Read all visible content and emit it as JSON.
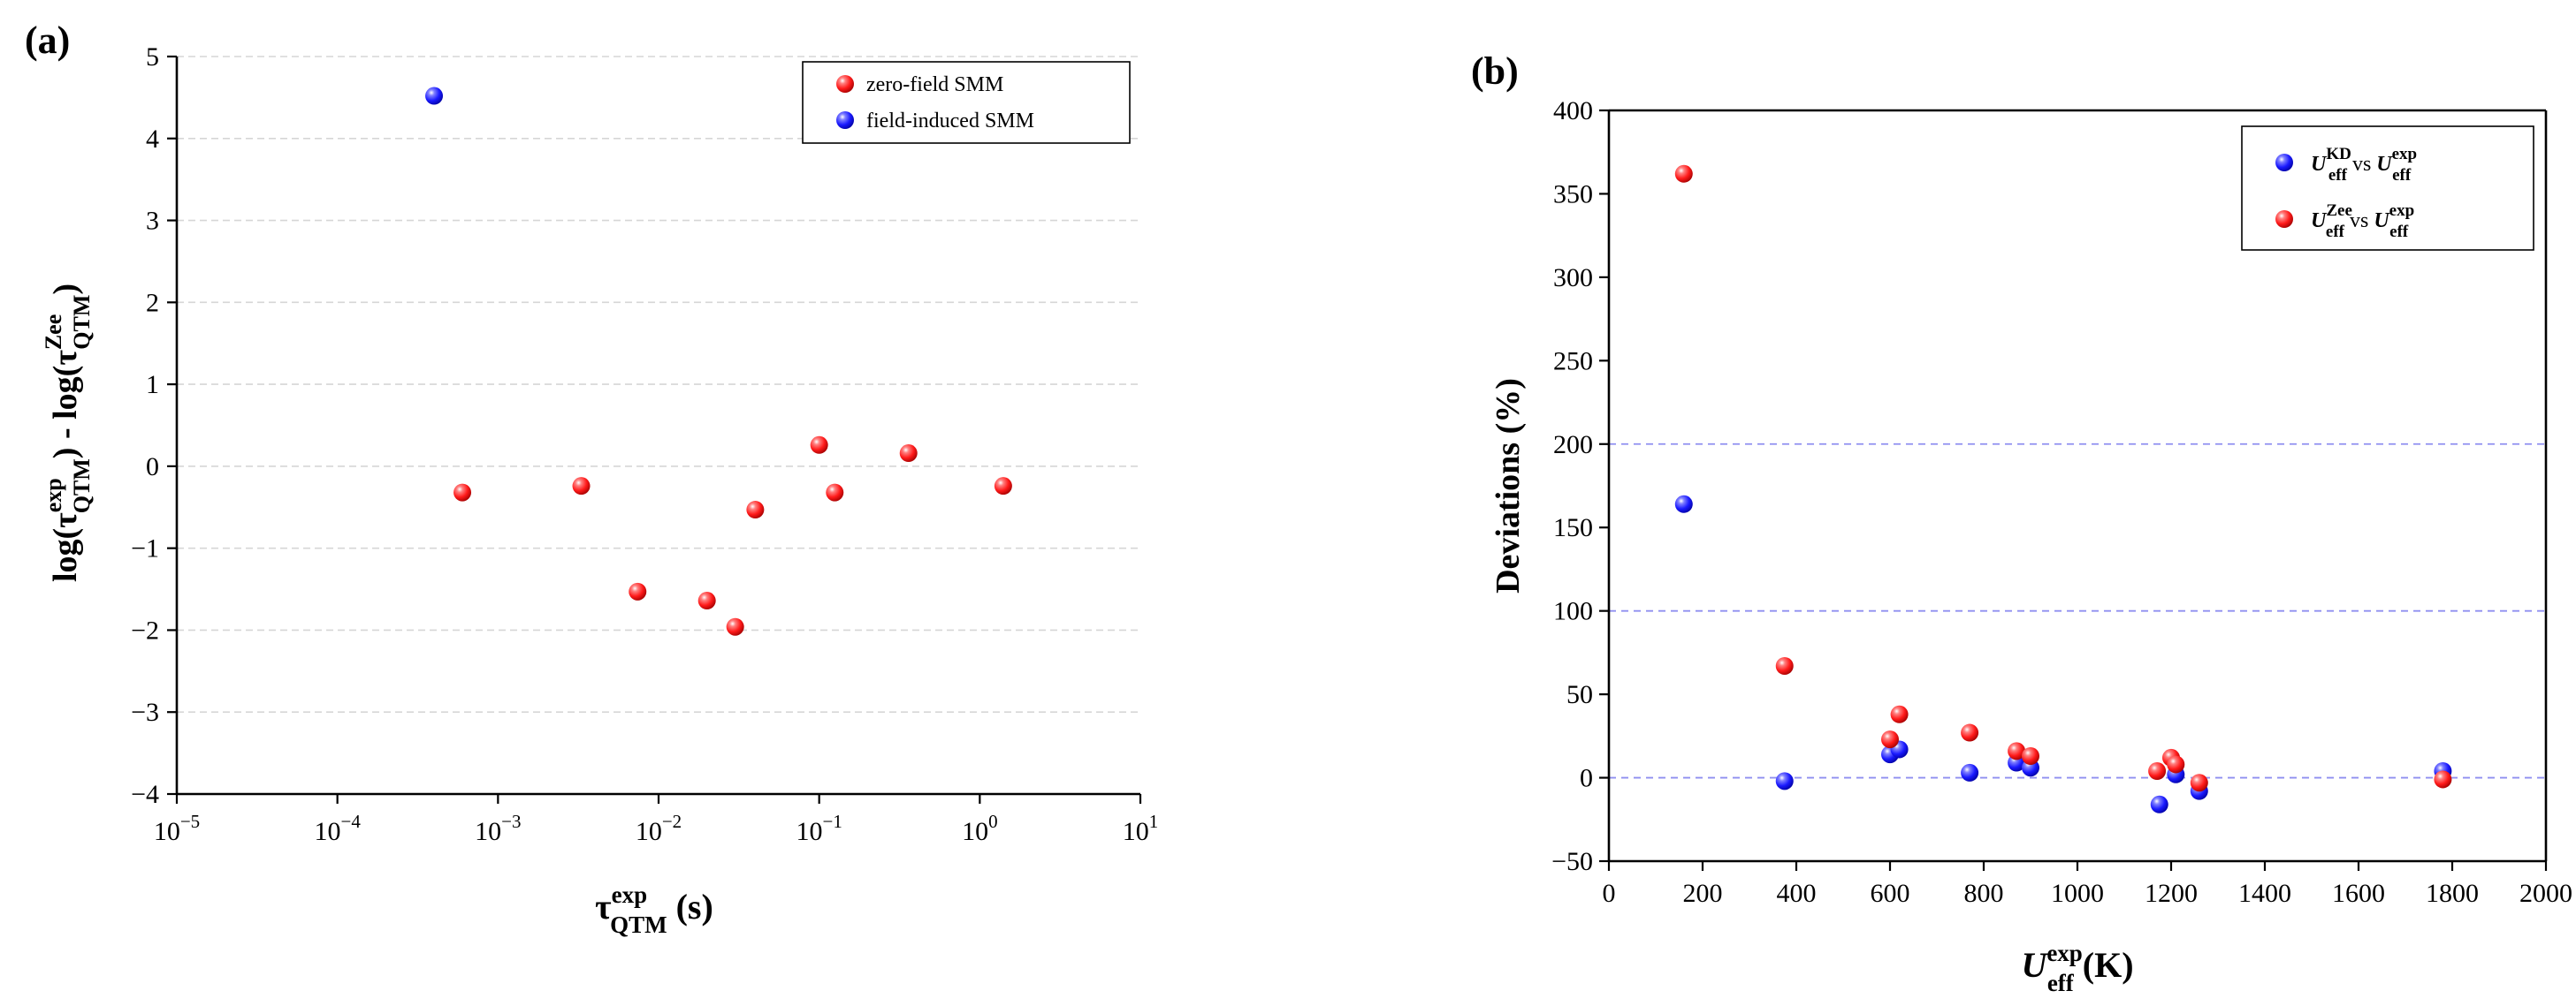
{
  "colors": {
    "zero_field": "#ff1a1a",
    "field_induced": "#1a1aff",
    "grid": "#d6d6d6",
    "reference_line": "#8f8ff0"
  },
  "chart_data": [
    {
      "panel_label": "(a)",
      "type": "scatter",
      "xscale": "log",
      "xlim": [
        1e-05,
        10
      ],
      "ylim": [
        -4,
        5
      ],
      "grid": "horizontal dashed",
      "legend_position": "top-right",
      "xlabel": {
        "base": "τ",
        "sup": "exp",
        "sub": "QTM",
        "unit": " (s)"
      },
      "ylabel": {
        "p1": "log(τ",
        "sup1": "exp",
        "sub1": "QTM",
        "p2": ") - log(τ",
        "sup2": "Zee",
        "sub2": "QTM",
        "p3": ")"
      },
      "x_tick_values": [
        1e-05,
        0.0001,
        0.001,
        0.01,
        0.1,
        1,
        10
      ],
      "x_tick_labels": [
        {
          "base": "10",
          "exp": "−5"
        },
        {
          "base": "10",
          "exp": "−4"
        },
        {
          "base": "10",
          "exp": "−3"
        },
        {
          "base": "10",
          "exp": "−2"
        },
        {
          "base": "10",
          "exp": "−1"
        },
        {
          "base": "10",
          "exp": "0"
        },
        {
          "base": "10",
          "exp": "1"
        }
      ],
      "y_ticks": [
        -4,
        -3,
        -2,
        -1,
        0,
        1,
        2,
        3,
        4,
        5
      ],
      "y_tick_labels": [
        "−4",
        "−3",
        "−2",
        "−1",
        "0",
        "1",
        "2",
        "3",
        "4",
        "5"
      ],
      "series": [
        {
          "name": "zero-field SMM",
          "color_key": "zero_field",
          "x": [
            0.0006,
            0.0033,
            0.0074,
            0.02,
            0.03,
            0.04,
            0.1,
            0.125,
            0.36,
            1.4
          ],
          "y": [
            -0.32,
            -0.24,
            -1.53,
            -1.64,
            -1.96,
            -0.53,
            0.26,
            -0.32,
            0.16,
            -0.24
          ]
        },
        {
          "name": "field-induced SMM",
          "color_key": "field_induced",
          "x": [
            0.0004
          ],
          "y": [
            4.52
          ]
        }
      ]
    },
    {
      "panel_label": "(b)",
      "type": "scatter",
      "xlim": [
        0,
        2000
      ],
      "ylim": [
        -50,
        400
      ],
      "reference_lines": [
        0,
        100,
        200
      ],
      "legend_position": "top-right",
      "xlabel": {
        "base": "U",
        "sup": "exp",
        "sub": "eff",
        "unit": " (K)"
      },
      "ylabel": "Deviations (%)",
      "x_ticks": [
        0,
        200,
        400,
        600,
        800,
        1000,
        1200,
        1400,
        1600,
        1800,
        2000
      ],
      "x_tick_labels": [
        "0",
        "200",
        "400",
        "600",
        "800",
        "1000",
        "1200",
        "1400",
        "1600",
        "1800",
        "2000"
      ],
      "y_ticks": [
        -50,
        0,
        50,
        100,
        150,
        200,
        250,
        300,
        350,
        400
      ],
      "y_tick_labels": [
        "−50",
        "0",
        "50",
        "100",
        "150",
        "200",
        "250",
        "300",
        "350",
        "400"
      ],
      "series": [
        {
          "name": "U_eff^KD vs U_eff^exp",
          "legend": {
            "sym": "U",
            "sup": "KD",
            "sub": "eff",
            "vs": " vs ",
            "sym2": "U",
            "sup2": "exp",
            "sub2": "eff"
          },
          "color_key": "field_induced",
          "x": [
            160,
            375,
            600,
            620,
            770,
            870,
            900,
            1175,
            1210,
            1260,
            1780
          ],
          "y": [
            164,
            -2,
            14,
            17,
            3,
            9,
            6,
            -16,
            2,
            -8,
            4
          ]
        },
        {
          "name": "U_eff^Zee vs U_eff^exp",
          "legend": {
            "sym": "U",
            "sup": "Zee",
            "sub": "eff",
            "vs": " vs ",
            "sym2": "U",
            "sup2": "exp",
            "sub2": "eff"
          },
          "color_key": "zero_field",
          "x": [
            160,
            375,
            600,
            620,
            770,
            870,
            900,
            1170,
            1200,
            1210,
            1260,
            1780
          ],
          "y": [
            362,
            67,
            23,
            38,
            27,
            16,
            13,
            4,
            12,
            8,
            -3,
            -1
          ]
        }
      ]
    }
  ]
}
